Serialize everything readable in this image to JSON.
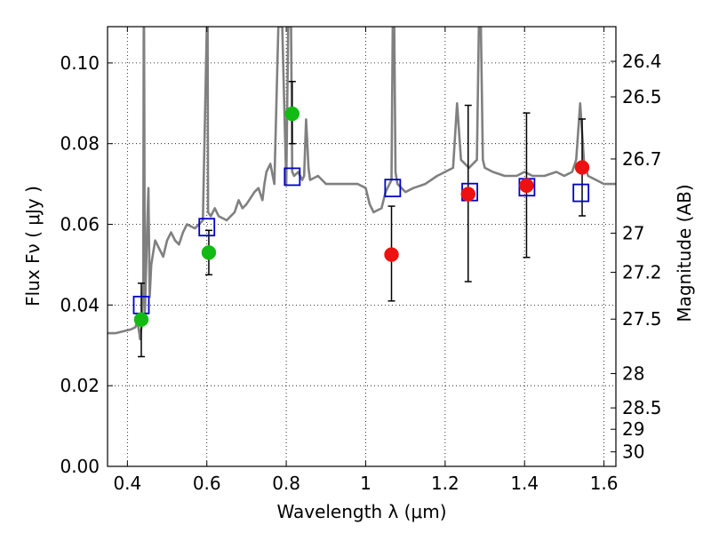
{
  "chart_data": {
    "type": "scatter",
    "xlabel": "Wavelength  λ (μm)",
    "ylabel": "Flux  Fν  ( μJy )",
    "ylabel_right": "Magnitude (AB)",
    "xlim": [
      0.35,
      1.63
    ],
    "ylim": [
      0.0,
      0.109
    ],
    "grid": true,
    "x_ticks": [
      0.4,
      0.6,
      0.8,
      1.0,
      1.2,
      1.4,
      1.6
    ],
    "x_tick_labels": [
      "0.4",
      "0.6",
      "0.8",
      "1",
      "1.2",
      "1.4",
      "1.6"
    ],
    "y_ticks": [
      0.0,
      0.02,
      0.04,
      0.06,
      0.08,
      0.1
    ],
    "y_tick_labels": [
      "0.00",
      "0.02",
      "0.04",
      "0.06",
      "0.08",
      "0.10"
    ],
    "right_ticks": [
      {
        "label": "26.4",
        "flux": 0.1004
      },
      {
        "label": "26.5",
        "flux": 0.0916
      },
      {
        "label": "26.7",
        "flux": 0.0762
      },
      {
        "label": "27",
        "flux": 0.0578
      },
      {
        "label": "27.2",
        "flux": 0.0481
      },
      {
        "label": "27.5",
        "flux": 0.0365
      },
      {
        "label": "28",
        "flux": 0.023
      },
      {
        "label": "28.5",
        "flux": 0.0145
      },
      {
        "label": "29",
        "flux": 0.0092
      },
      {
        "label": "30",
        "flux": 0.0036
      }
    ],
    "series": [
      {
        "kind": "model_spectrum",
        "color": "#808080",
        "x": [
          0.35,
          0.37,
          0.39,
          0.41,
          0.42,
          0.425,
          0.43,
          0.432,
          0.436,
          0.438,
          0.44,
          0.441,
          0.442,
          0.444,
          0.446,
          0.45,
          0.453,
          0.456,
          0.46,
          0.47,
          0.48,
          0.49,
          0.5,
          0.51,
          0.52,
          0.53,
          0.54,
          0.55,
          0.57,
          0.59,
          0.6,
          0.601,
          0.602,
          0.603,
          0.61,
          0.62,
          0.63,
          0.65,
          0.66,
          0.67,
          0.68,
          0.69,
          0.7,
          0.72,
          0.73,
          0.74,
          0.745,
          0.75,
          0.76,
          0.77,
          0.78,
          0.79,
          0.8,
          0.805,
          0.808,
          0.812,
          0.815,
          0.82,
          0.83,
          0.84,
          0.845,
          0.85,
          0.853,
          0.856,
          0.86,
          0.88,
          0.9,
          0.95,
          0.98,
          1.0,
          1.01,
          1.02,
          1.04,
          1.05,
          1.06,
          1.065,
          1.068,
          1.072,
          1.075,
          1.08,
          1.1,
          1.12,
          1.15,
          1.18,
          1.2,
          1.22,
          1.23,
          1.24,
          1.25,
          1.26,
          1.28,
          1.285,
          1.29,
          1.295,
          1.3,
          1.32,
          1.35,
          1.38,
          1.4,
          1.42,
          1.45,
          1.48,
          1.5,
          1.52,
          1.53,
          1.54,
          1.55,
          1.56,
          1.58,
          1.6,
          1.63
        ],
        "y": [
          0.033,
          0.033,
          0.0335,
          0.034,
          0.0345,
          0.036,
          0.033,
          0.0315,
          0.035,
          0.04,
          0.045,
          0.109,
          0.109,
          0.038,
          0.045,
          0.06,
          0.069,
          0.042,
          0.05,
          0.056,
          0.054,
          0.052,
          0.056,
          0.058,
          0.056,
          0.055,
          0.058,
          0.06,
          0.059,
          0.061,
          0.109,
          0.109,
          0.109,
          0.063,
          0.062,
          0.064,
          0.062,
          0.061,
          0.062,
          0.063,
          0.066,
          0.064,
          0.065,
          0.068,
          0.069,
          0.066,
          0.07,
          0.073,
          0.075,
          0.07,
          0.109,
          0.109,
          0.07,
          0.109,
          0.109,
          0.109,
          0.073,
          0.072,
          0.073,
          0.071,
          0.072,
          0.086,
          0.08,
          0.074,
          0.071,
          0.072,
          0.07,
          0.07,
          0.07,
          0.069,
          0.065,
          0.063,
          0.064,
          0.068,
          0.07,
          0.071,
          0.109,
          0.109,
          0.073,
          0.07,
          0.068,
          0.069,
          0.07,
          0.072,
          0.073,
          0.074,
          0.09,
          0.076,
          0.075,
          0.074,
          0.076,
          0.109,
          0.109,
          0.076,
          0.074,
          0.073,
          0.072,
          0.072,
          0.073,
          0.072,
          0.072,
          0.073,
          0.072,
          0.073,
          0.076,
          0.09,
          0.075,
          0.072,
          0.071,
          0.07,
          0.07
        ]
      },
      {
        "kind": "model_photometry",
        "marker": "open-square",
        "color": "#0000cc",
        "x": [
          0.435,
          0.6,
          0.815,
          1.068,
          1.262,
          1.406,
          1.542
        ],
        "y": [
          0.04,
          0.0593,
          0.0718,
          0.069,
          0.068,
          0.0692,
          0.0678
        ]
      },
      {
        "kind": "observed_photometry",
        "marker": "filled-circle",
        "color": "#11bb11",
        "x": [
          0.435,
          0.605,
          0.815
        ],
        "y": [
          0.0364,
          0.053,
          0.0874
        ],
        "yerr_low": [
          0.0092,
          0.0055,
          0.0074
        ],
        "yerr_high": [
          0.009,
          0.0055,
          0.008
        ]
      },
      {
        "kind": "observed_photometry",
        "marker": "filled-circle",
        "color": "#ee1111",
        "x": [
          1.065,
          1.258,
          1.405,
          1.545
        ],
        "y": [
          0.0525,
          0.0675,
          0.0696,
          0.0741
        ],
        "yerr_low": [
          0.0115,
          0.0217,
          0.0178,
          0.012
        ],
        "yerr_high": [
          0.012,
          0.022,
          0.018,
          0.012
        ]
      }
    ]
  }
}
